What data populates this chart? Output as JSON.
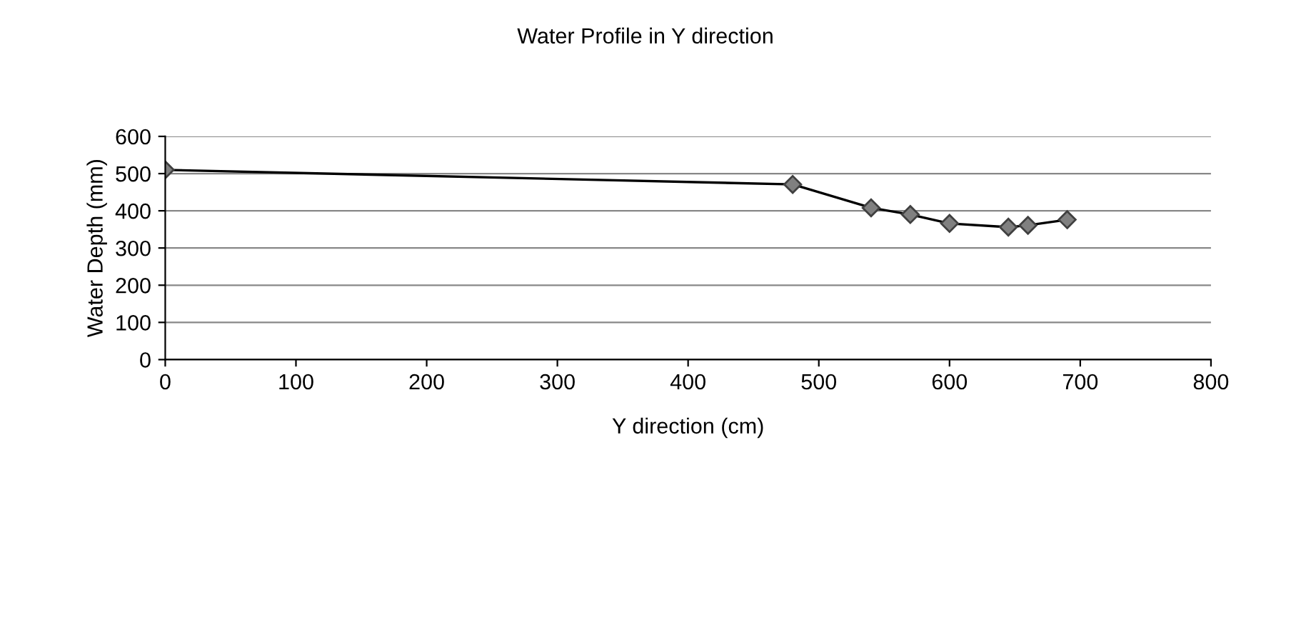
{
  "chart_data": {
    "type": "line",
    "title": "Water Profile in Y direction",
    "xlabel": "Y direction (cm)",
    "ylabel": "Water Depth (mm)",
    "x": [
      0,
      480,
      540,
      570,
      600,
      645,
      660,
      690
    ],
    "series": [
      {
        "color": "#808080",
        "values": [
          510,
          471,
          408,
          390,
          366,
          356,
          361,
          376
        ]
      }
    ],
    "xlim": [
      0,
      800
    ],
    "xticks": [
      0,
      100,
      200,
      300,
      400,
      500,
      600,
      700,
      800
    ],
    "ylim": [
      0,
      600
    ],
    "yticks": [
      0,
      100,
      200,
      300,
      400,
      500,
      600
    ],
    "grid": "y",
    "marker": "diamond",
    "line_style": "solid",
    "legend": false
  }
}
